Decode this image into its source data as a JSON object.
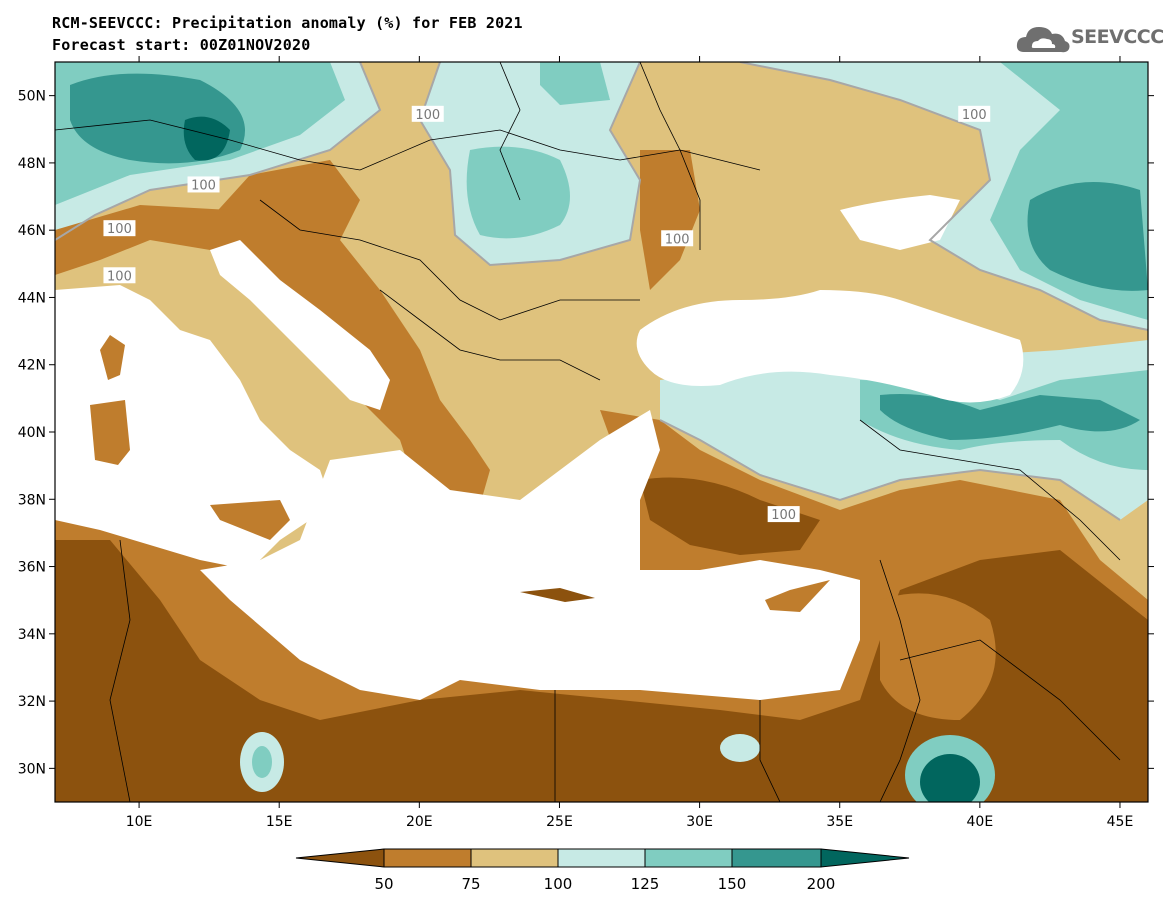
{
  "header": {
    "title_line1": "RCM-SEEVCCC: Precipitation anomaly (%) for FEB 2021",
    "title_line2": "Forecast start: 00Z01NOV2020",
    "logo_text": "SEEVCCC"
  },
  "map": {
    "lon_range": [
      7,
      46
    ],
    "lat_range": [
      29,
      51
    ],
    "lon_ticks": [
      {
        "value": 10,
        "label": "10E"
      },
      {
        "value": 15,
        "label": "15E"
      },
      {
        "value": 20,
        "label": "20E"
      },
      {
        "value": 25,
        "label": "25E"
      },
      {
        "value": 30,
        "label": "30E"
      },
      {
        "value": 35,
        "label": "35E"
      },
      {
        "value": 40,
        "label": "40E"
      },
      {
        "value": 45,
        "label": "45E"
      }
    ],
    "lat_ticks": [
      {
        "value": 50,
        "label": "50N"
      },
      {
        "value": 48,
        "label": "48N"
      },
      {
        "value": 46,
        "label": "46N"
      },
      {
        "value": 44,
        "label": "44N"
      },
      {
        "value": 42,
        "label": "42N"
      },
      {
        "value": 40,
        "label": "40N"
      },
      {
        "value": 38,
        "label": "38N"
      },
      {
        "value": 36,
        "label": "36N"
      },
      {
        "value": 34,
        "label": "34N"
      },
      {
        "value": 32,
        "label": "32N"
      },
      {
        "value": 30,
        "label": "30N"
      }
    ],
    "contour_labels": [
      {
        "text": "100",
        "lon": 20.3,
        "lat": 49.4
      },
      {
        "text": "100",
        "lon": 39.8,
        "lat": 49.4
      },
      {
        "text": "100",
        "lon": 12.3,
        "lat": 47.3
      },
      {
        "text": "100",
        "lon": 9.3,
        "lat": 46.0
      },
      {
        "text": "100",
        "lon": 9.3,
        "lat": 44.6
      },
      {
        "text": "100",
        "lon": 29.2,
        "lat": 45.7
      },
      {
        "text": "100",
        "lon": 33.0,
        "lat": 37.5
      }
    ]
  },
  "colorbar": {
    "levels": [
      "50",
      "75",
      "100",
      "125",
      "150",
      "200"
    ],
    "colors": [
      "#8c520e",
      "#bf7d2d",
      "#dfc27d",
      "#c7eae5",
      "#80cdc1",
      "#35978f",
      "#01665e"
    ]
  }
}
